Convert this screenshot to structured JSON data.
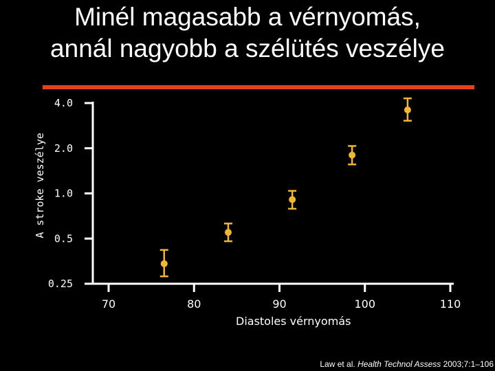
{
  "title_line1": "Minél magasabb a vérnyomás,",
  "title_line2": "annál nagyobb a szélütés veszélye",
  "accent_color": "#e8401c",
  "marker_color": "#f2b534",
  "citation": {
    "authors": "Law et al. ",
    "journal": "Health Technol Assess",
    "rest": " 2003;7:1–106"
  },
  "chart_data": {
    "type": "scatter",
    "title": "",
    "xlabel": "Diastoles vérnyomás",
    "ylabel": "A stroke veszélye",
    "xlim": [
      70,
      110
    ],
    "ylim": [
      0.25,
      4.0
    ],
    "y_scale": "log",
    "x_ticks": [
      "70",
      "80",
      "90",
      "100",
      "110"
    ],
    "y_ticks": [
      "4.0",
      "2.0",
      "1.0",
      "0.5",
      "0.25"
    ],
    "y_tick_values": [
      4.0,
      2.0,
      1.0,
      0.5,
      0.25
    ],
    "grid": false,
    "points": [
      {
        "x": 76.5,
        "y": 0.34,
        "ylow": 0.28,
        "yhigh": 0.42
      },
      {
        "x": 84.0,
        "y": 0.55,
        "ylow": 0.48,
        "yhigh": 0.63
      },
      {
        "x": 91.5,
        "y": 0.91,
        "ylow": 0.79,
        "yhigh": 1.04
      },
      {
        "x": 98.5,
        "y": 1.8,
        "ylow": 1.56,
        "yhigh": 2.07
      },
      {
        "x": 105.0,
        "y": 3.6,
        "ylow": 3.05,
        "yhigh": 4.3
      }
    ]
  }
}
